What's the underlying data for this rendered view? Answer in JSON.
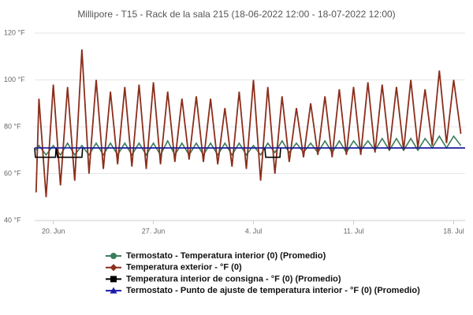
{
  "chart_data": {
    "type": "line",
    "title": "Millipore - T15 - Rack de la sala 215 (18-06-2022 12:00 - 18-07-2022 12:00)",
    "xlim": [
      18.7,
      48.8
    ],
    "xticks": [
      {
        "value": 20,
        "label": "20. Jun"
      },
      {
        "value": 27,
        "label": "27. Jun"
      },
      {
        "value": 34,
        "label": "4. Jul"
      },
      {
        "value": 41,
        "label": "11. Jul"
      },
      {
        "value": 48,
        "label": "18. Jul"
      }
    ],
    "ylim": [
      40,
      120
    ],
    "yticks": [
      {
        "value": 40,
        "label": "40 °F"
      },
      {
        "value": 60,
        "label": "60 °F"
      },
      {
        "value": 80,
        "label": "80 °F"
      },
      {
        "value": 100,
        "label": "100 °F"
      },
      {
        "value": 120,
        "label": "120 °F"
      }
    ],
    "grid": true,
    "series": [
      {
        "name": "Termostato - Temperatura interior (0) (Promedio)",
        "color": "#3a7d5a",
        "marker": "circle",
        "x": [
          18.8,
          19,
          19.5,
          20,
          20.5,
          21,
          21.5,
          22,
          22.5,
          23,
          23.5,
          24,
          24.5,
          25,
          25.5,
          26,
          26.5,
          27,
          27.5,
          28,
          28.5,
          29,
          29.5,
          30,
          30.5,
          31,
          31.5,
          32,
          32.5,
          33,
          33.5,
          34,
          34.5,
          35,
          35.5,
          36,
          36.5,
          37,
          37.5,
          38,
          38.5,
          39,
          39.5,
          40,
          40.5,
          41,
          41.5,
          42,
          42.5,
          43,
          43.5,
          44,
          44.5,
          45,
          45.5,
          46,
          46.5,
          47,
          47.5,
          48,
          48.5
        ],
        "values": [
          70,
          72,
          68,
          72,
          68,
          73,
          68,
          72,
          68,
          73,
          68,
          73,
          68,
          73,
          68,
          73,
          68,
          73,
          68,
          74,
          68,
          73,
          68,
          73,
          68,
          73,
          68,
          73,
          68,
          73,
          68,
          72,
          68,
          73,
          69,
          74,
          69,
          73,
          69,
          73,
          69,
          74,
          69,
          74,
          69,
          74,
          70,
          74,
          70,
          75,
          70,
          75,
          70,
          75,
          70,
          75,
          71,
          76,
          71,
          76,
          72
        ]
      },
      {
        "name": "Temperatura exterior - °F (0)",
        "color": "#8b2e1c",
        "marker": "diamond",
        "x": [
          18.8,
          19,
          19.5,
          20,
          20.5,
          21,
          21.5,
          22,
          22.5,
          23,
          23.5,
          24,
          24.5,
          25,
          25.5,
          26,
          26.5,
          27,
          27.5,
          28,
          28.5,
          29,
          29.5,
          30,
          30.5,
          31,
          31.5,
          32,
          32.5,
          33,
          33.5,
          34,
          34.5,
          35,
          35.5,
          36,
          36.5,
          37,
          37.5,
          38,
          38.5,
          39,
          39.5,
          40,
          40.5,
          41,
          41.5,
          42,
          42.5,
          43,
          43.5,
          44,
          44.5,
          45,
          45.5,
          46,
          46.5,
          47,
          47.5,
          48,
          48.5
        ],
        "values": [
          52,
          92,
          50,
          98,
          55,
          97,
          57,
          113,
          60,
          100,
          62,
          95,
          64,
          97,
          63,
          98,
          62,
          99,
          64,
          95,
          65,
          92,
          66,
          93,
          65,
          92,
          64,
          88,
          63,
          95,
          62,
          100,
          57,
          97,
          60,
          93,
          65,
          88,
          67,
          90,
          68,
          93,
          67,
          96,
          68,
          97,
          68,
          99,
          69,
          98,
          70,
          97,
          70,
          100,
          71,
          96,
          72,
          104,
          73,
          100,
          77
        ]
      },
      {
        "name": "Temperatura interior de consigna - °F (0) (Promedio)",
        "color": "#000000",
        "marker": "square",
        "x": [
          18.7,
          18.75,
          20.15,
          20.2,
          20.3,
          22.0,
          22.05,
          34.8,
          34.85,
          35.85,
          35.9,
          48.8
        ],
        "values": [
          71,
          67,
          67,
          71,
          67,
          67,
          71,
          71,
          67,
          67,
          71,
          71
        ]
      },
      {
        "name": "Termostato - Punto de ajuste de temperatura interior - °F (0) (Promedio)",
        "color": "#1a1aa8",
        "marker": "triangle",
        "x": [
          18.7,
          48.8
        ],
        "values": [
          71,
          71
        ]
      }
    ]
  }
}
